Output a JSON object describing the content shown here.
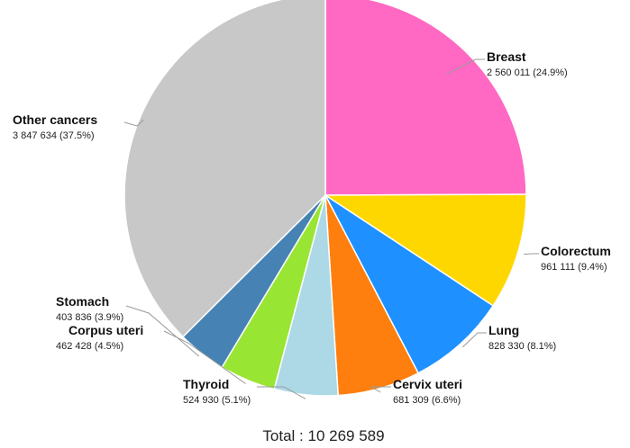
{
  "chart_data": {
    "type": "pie",
    "title": "",
    "categories": [
      "Breast",
      "Colorectum",
      "Lung",
      "Cervix uteri",
      "Thyroid",
      "Corpus uteri",
      "Stomach",
      "Other cancers"
    ],
    "values": [
      2560011,
      961111,
      828330,
      681309,
      524930,
      462428,
      403836,
      3847634
    ],
    "percent_labels": [
      "24.9%",
      "9.4%",
      "8.1%",
      "6.6%",
      "5.1%",
      "4.5%",
      "3.9%",
      "37.5%"
    ],
    "value_labels": [
      "2 560 011 (24.9%)",
      "961 111 (9.4%)",
      "828 330 (8.1%)",
      "681 309 (6.6%)",
      "524 930 (5.1%)",
      "462 428 (4.5%)",
      "403 836 (3.9%)",
      "3 847 634 (37.5%)"
    ],
    "colors": [
      "#FF69C4",
      "#FFD700",
      "#1E90FF",
      "#FF7F0E",
      "#ADD8E6",
      "#99E533",
      "#4682B4",
      "#C8C8C8"
    ],
    "start_angle": "12 o'clock",
    "direction": "clockwise",
    "legend": "none",
    "total_label": "Total : 10 269 589"
  }
}
